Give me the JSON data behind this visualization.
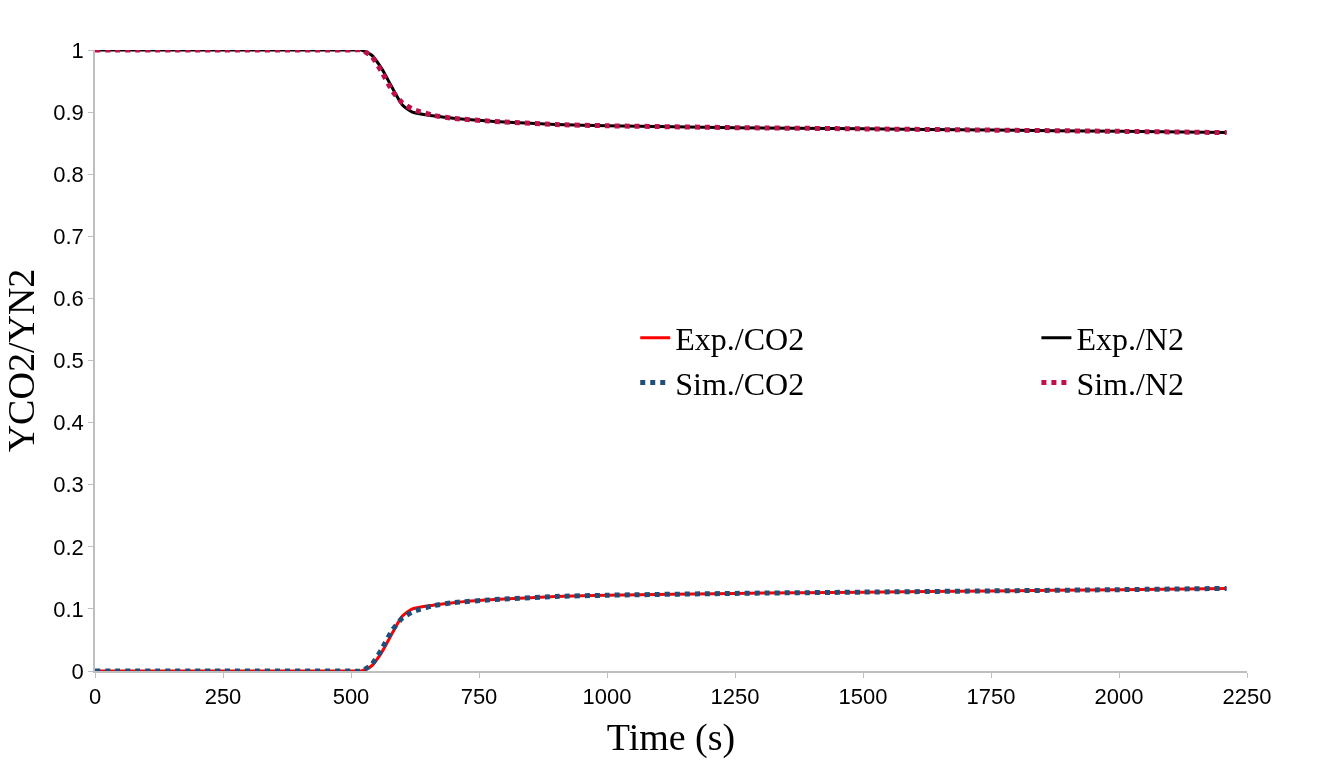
{
  "chart_data": {
    "type": "line",
    "xlabel": "Time (s)",
    "ylabel": "YCO2/YN2",
    "xlim": [
      0,
      2250
    ],
    "xticks": [
      0,
      250,
      500,
      750,
      1000,
      1250,
      1500,
      1750,
      2000,
      2250
    ],
    "ylim": [
      0,
      1
    ],
    "yticks": [
      0,
      0.1,
      0.2,
      0.3,
      0.4,
      0.5,
      0.6,
      0.7,
      0.8,
      0.9,
      1
    ],
    "legend": "right",
    "series": [
      {
        "name": "Exp./CO2",
        "color": "#ff0000",
        "line_style": "solid",
        "x": [
          0,
          250,
          500,
          520,
          540,
          560,
          580,
          600,
          620,
          660,
          700,
          780,
          900,
          1000,
          1250,
          1500,
          1750,
          2000,
          2210
        ],
        "values": [
          0,
          0,
          0,
          0,
          0.008,
          0.03,
          0.06,
          0.088,
          0.1,
          0.106,
          0.11,
          0.115,
          0.12,
          0.122,
          0.125,
          0.127,
          0.129,
          0.131,
          0.133
        ]
      },
      {
        "name": "Exp./N2",
        "color": "#000000",
        "line_style": "solid",
        "x": [
          0,
          250,
          500,
          520,
          540,
          560,
          580,
          600,
          620,
          660,
          700,
          780,
          900,
          1000,
          1250,
          1500,
          1750,
          2000,
          2210
        ],
        "values": [
          1,
          1,
          1,
          1,
          0.992,
          0.97,
          0.94,
          0.912,
          0.9,
          0.894,
          0.89,
          0.885,
          0.88,
          0.878,
          0.875,
          0.873,
          0.871,
          0.869,
          0.867
        ]
      },
      {
        "name": "Sim./CO2",
        "color": "#1f4e79",
        "line_style": "dotted",
        "x": [
          0,
          250,
          500,
          520,
          540,
          560,
          580,
          600,
          620,
          660,
          700,
          780,
          900,
          1000,
          1250,
          1500,
          1750,
          2000,
          2210
        ],
        "values": [
          0,
          0,
          0,
          0,
          0.01,
          0.035,
          0.065,
          0.085,
          0.095,
          0.105,
          0.11,
          0.115,
          0.12,
          0.122,
          0.125,
          0.127,
          0.129,
          0.131,
          0.133
        ]
      },
      {
        "name": "Sim./N2",
        "color": "#c0104a",
        "line_style": "dotted",
        "x": [
          0,
          250,
          500,
          520,
          540,
          560,
          580,
          600,
          620,
          660,
          700,
          780,
          900,
          1000,
          1250,
          1500,
          1750,
          2000,
          2210
        ],
        "values": [
          1,
          1,
          1,
          1,
          0.99,
          0.965,
          0.935,
          0.915,
          0.905,
          0.895,
          0.89,
          0.885,
          0.88,
          0.878,
          0.875,
          0.873,
          0.871,
          0.869,
          0.867
        ]
      }
    ]
  }
}
